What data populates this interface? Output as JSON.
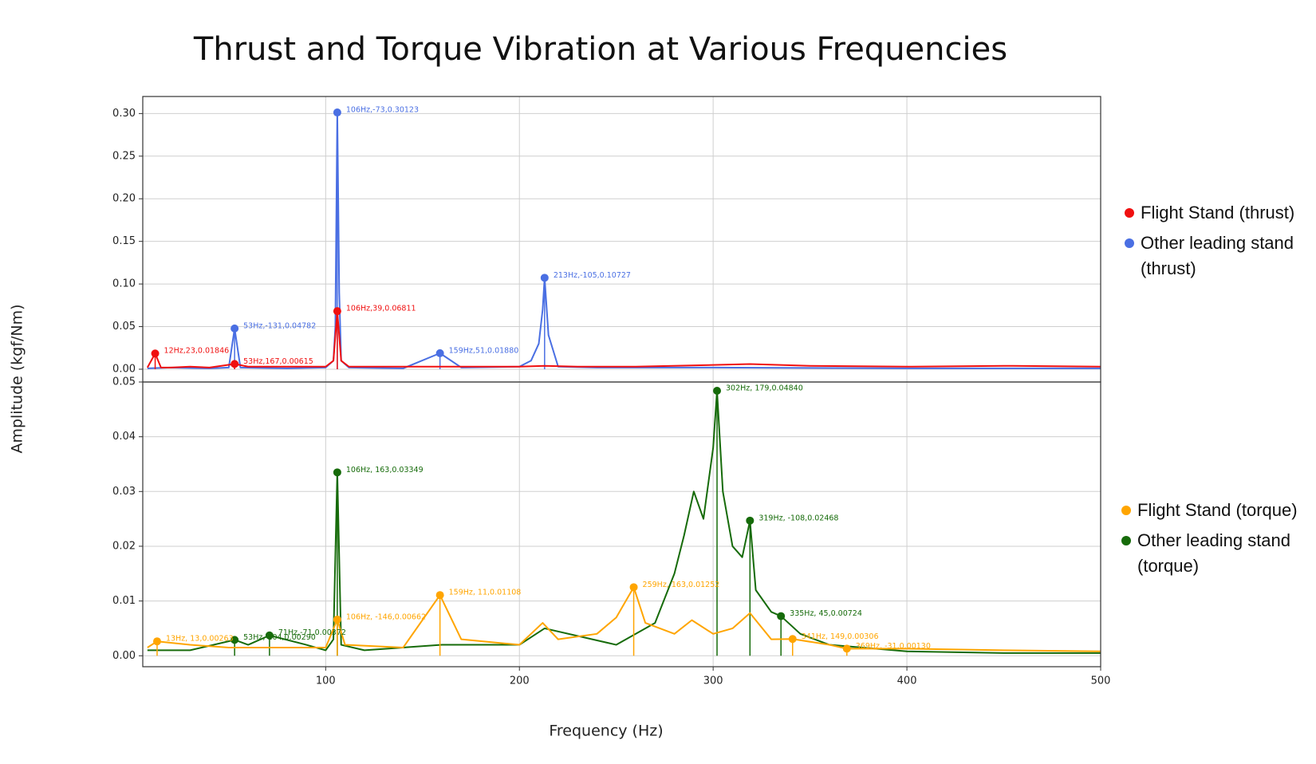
{
  "chart_data": [
    {
      "type": "line",
      "title": "Thrust and Torque Vibration at Various Frequencies",
      "y_label": "Amplitude (kgf/Nm)",
      "xlim": [
        5.6,
        500
      ],
      "ylim": [
        -0.015,
        0.32
      ],
      "yticks": [
        {
          "value": 0,
          "label": "0.00"
        },
        {
          "value": 0.05,
          "label": "0.05"
        },
        {
          "value": 0.1,
          "label": "0.10"
        },
        {
          "value": 0.15,
          "label": "0.15"
        },
        {
          "value": 0.2,
          "label": "0.20"
        },
        {
          "value": 0.25,
          "label": "0.25"
        },
        {
          "value": 0.3,
          "label": "0.30"
        }
      ],
      "grid": true,
      "series": [
        {
          "name": "Other leading stand (thrust)",
          "color": "#4a6fe3",
          "x": [
            8,
            20,
            40,
            50,
            53,
            56,
            80,
            100,
            104,
            105,
            106,
            107,
            108,
            112,
            140,
            159,
            170,
            200,
            206,
            210,
            212,
            213,
            215,
            220,
            240,
            300,
            400,
            500
          ],
          "values": [
            0.001,
            0.002,
            0.001,
            0.002,
            0.04782,
            0.002,
            0.001,
            0.002,
            0.01,
            0.05,
            0.30123,
            0.09,
            0.01,
            0.002,
            0.001,
            0.0188,
            0.002,
            0.003,
            0.01,
            0.03,
            0.07,
            0.10727,
            0.04,
            0.003,
            0.002,
            0.002,
            0.001,
            0.001
          ],
          "annotations": [
            {
              "text": "53Hz,-131,0.04782",
              "x": 53,
              "y": 0.04782
            },
            {
              "text": "106Hz,-73,0.30123",
              "x": 106,
              "y": 0.30123
            },
            {
              "text": "159Hz,51,0.01880",
              "x": 159,
              "y": 0.0188
            },
            {
              "text": "213Hz,-105,0.10727",
              "x": 213,
              "y": 0.10727
            }
          ]
        },
        {
          "name": "Flight Stand (thrust)",
          "color": "#f01010",
          "x": [
            8,
            12,
            15,
            20,
            30,
            40,
            53,
            60,
            80,
            100,
            104,
            106,
            108,
            112,
            130,
            159,
            180,
            200,
            213,
            230,
            260,
            300,
            319,
            350,
            400,
            450,
            500
          ],
          "values": [
            0.002,
            0.01846,
            0.002,
            0.002,
            0.003,
            0.002,
            0.00615,
            0.003,
            0.003,
            0.003,
            0.01,
            0.06811,
            0.01,
            0.003,
            0.003,
            0.003,
            0.003,
            0.003,
            0.004,
            0.003,
            0.003,
            0.005,
            0.006,
            0.004,
            0.003,
            0.004,
            0.003
          ],
          "annotations": [
            {
              "text": "12Hz,23,0.01846",
              "x": 12,
              "y": 0.01846
            },
            {
              "text": "53Hz,167,0.00615",
              "x": 53,
              "y": 0.00615
            },
            {
              "text": "106Hz,39,0.06811",
              "x": 106,
              "y": 0.06811
            }
          ]
        }
      ]
    },
    {
      "type": "line",
      "x_label": "Frequency (Hz)",
      "xlim": [
        5.6,
        500
      ],
      "ylim": [
        -0.002,
        0.05
      ],
      "xticks": [
        100,
        200,
        300,
        400,
        500
      ],
      "yticks": [
        {
          "value": 0,
          "label": "0.00"
        },
        {
          "value": 0.01,
          "label": "0.01"
        },
        {
          "value": 0.02,
          "label": "0.02"
        },
        {
          "value": 0.03,
          "label": "0.03"
        },
        {
          "value": 0.04,
          "label": "0.04"
        },
        {
          "value": 0.05,
          "label": "0.05"
        }
      ],
      "grid": true,
      "series": [
        {
          "name": "Other leading stand (torque)",
          "color": "#166b0a",
          "x": [
            8,
            30,
            53,
            60,
            71,
            90,
            100,
            104,
            106,
            108,
            120,
            160,
            200,
            213,
            250,
            270,
            280,
            285,
            290,
            295,
            300,
            302,
            305,
            310,
            315,
            319,
            322,
            330,
            335,
            345,
            360,
            400,
            450,
            500
          ],
          "values": [
            0.001,
            0.001,
            0.0029,
            0.002,
            0.00372,
            0.002,
            0.001,
            0.003,
            0.03349,
            0.002,
            0.001,
            0.002,
            0.002,
            0.005,
            0.002,
            0.006,
            0.015,
            0.022,
            0.03,
            0.025,
            0.038,
            0.0484,
            0.03,
            0.02,
            0.018,
            0.02468,
            0.012,
            0.008,
            0.00724,
            0.004,
            0.002,
            0.0008,
            0.0005,
            0.0005
          ],
          "annotations": [
            {
              "text": "53Hz, 104,0.00290",
              "x": 53,
              "y": 0.0029
            },
            {
              "text": "71Hz,-71,0.00372",
              "x": 71,
              "y": 0.00372
            },
            {
              "text": "106Hz, 163,0.03349",
              "x": 106,
              "y": 0.03349
            },
            {
              "text": "302Hz, 179,0.04840",
              "x": 302,
              "y": 0.0484
            },
            {
              "text": "319Hz, -108,0.02468",
              "x": 319,
              "y": 0.02468
            },
            {
              "text": "335Hz, 45,0.00724",
              "x": 335,
              "y": 0.00724
            }
          ]
        },
        {
          "name": "Flight Stand (torque)",
          "color": "#ffa500",
          "x": [
            8,
            13,
            30,
            50,
            80,
            100,
            106,
            110,
            140,
            159,
            170,
            200,
            212,
            220,
            240,
            250,
            259,
            265,
            280,
            289,
            300,
            310,
            319,
            330,
            341,
            360,
            369,
            400,
            450,
            500
          ],
          "values": [
            0.0015,
            0.00263,
            0.002,
            0.0015,
            0.0015,
            0.0015,
            0.00662,
            0.002,
            0.0015,
            0.01108,
            0.003,
            0.002,
            0.006,
            0.003,
            0.004,
            0.007,
            0.01252,
            0.006,
            0.004,
            0.0065,
            0.004,
            0.005,
            0.0078,
            0.003,
            0.00306,
            0.002,
            0.0013,
            0.0013,
            0.001,
            0.0008
          ],
          "annotations": [
            {
              "text": "13Hz, 13,0.00263",
              "x": 13,
              "y": 0.00263
            },
            {
              "text": "106Hz, -146,0.00662",
              "x": 106,
              "y": 0.00662
            },
            {
              "text": "159Hz, 11,0.01108",
              "x": 159,
              "y": 0.01108
            },
            {
              "text": "259Hz, 163,0.01252",
              "x": 259,
              "y": 0.01252
            },
            {
              "text": "341Hz, 149,0.00306",
              "x": 341,
              "y": 0.00306
            },
            {
              "text": "369Hz, -31,0.00130",
              "x": 369,
              "y": 0.0013
            }
          ]
        }
      ]
    }
  ]
}
